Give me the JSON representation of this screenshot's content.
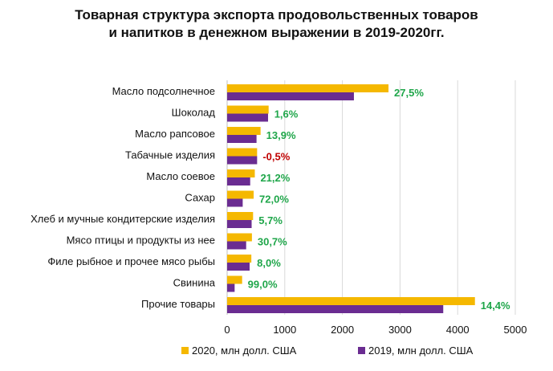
{
  "chart_data": {
    "type": "bar",
    "orientation": "horizontal",
    "title_lines": [
      "Товарная структура экспорта продовольственных товаров",
      "и напитков в денежном выражении в 2019-2020гг."
    ],
    "categories": [
      "Масло подсолнечное",
      "Шоколад",
      "Масло рапсовое",
      "Табачные изделия",
      "Масло соевое",
      "Сахар",
      "Хлеб и мучные кондитерские изделия",
      "Мясо птицы и продукты из нее",
      "Филе рыбное и прочее мясо рыбы",
      "Свинина",
      "Прочие товары"
    ],
    "series": [
      {
        "name": "2020, млн долл. США",
        "color": "#F5B800",
        "values": [
          2800,
          720,
          580,
          520,
          480,
          460,
          450,
          430,
          420,
          260,
          4300
        ]
      },
      {
        "name": "2019, млн долл. США",
        "color": "#6A2C91",
        "values": [
          2200,
          710,
          510,
          520,
          400,
          270,
          425,
          330,
          390,
          130,
          3750
        ]
      }
    ],
    "change_labels": [
      "27,5%",
      "1,6%",
      "13,9%",
      "-0,5%",
      "21,2%",
      "72,0%",
      "5,7%",
      "30,7%",
      "8,0%",
      "99,0%",
      "14,4%"
    ],
    "change_colors": [
      "#1FA64A",
      "#1FA64A",
      "#1FA64A",
      "#C00000",
      "#1FA64A",
      "#1FA64A",
      "#1FA64A",
      "#1FA64A",
      "#1FA64A",
      "#1FA64A",
      "#1FA64A"
    ],
    "x_ticks": [
      0,
      1000,
      2000,
      3000,
      4000,
      5000
    ],
    "x_tick_labels": [
      "0",
      "1000",
      "2000",
      "3000",
      "4000",
      "5000"
    ],
    "xlim": [
      0,
      5000
    ],
    "grid": true,
    "legend_position": "bottom"
  }
}
